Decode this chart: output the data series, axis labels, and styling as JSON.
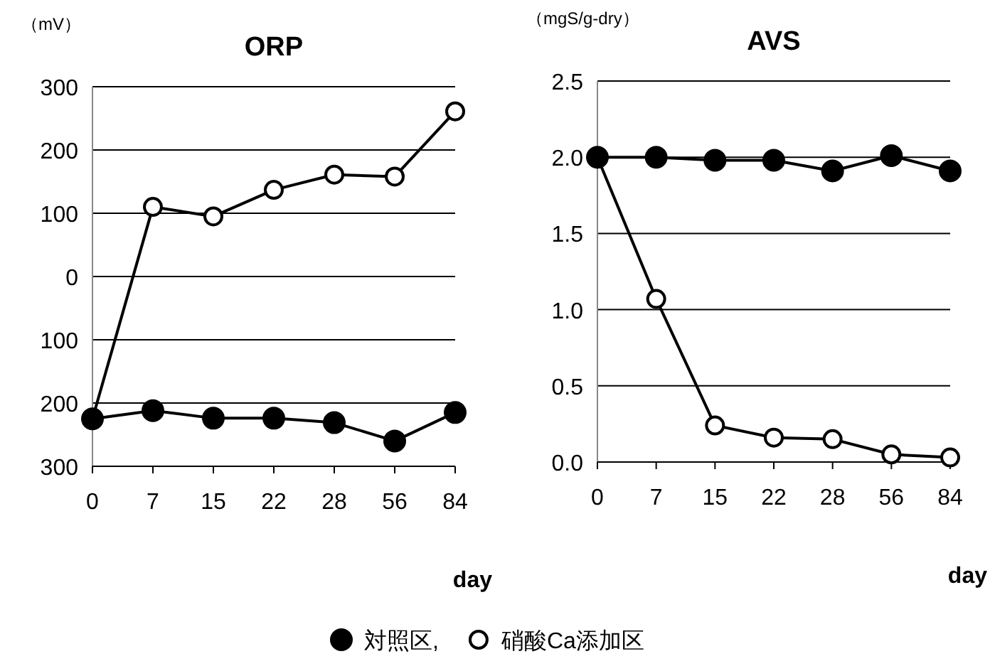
{
  "chart_data": [
    {
      "type": "line",
      "title": "ORP",
      "ylabel": "（mV）",
      "xlabel": "day",
      "categories": [
        "0",
        "7",
        "15",
        "22",
        "28",
        "56",
        "84"
      ],
      "ylim": [
        -300,
        300
      ],
      "yticks": [
        300,
        200,
        100,
        0,
        {
          "value": -100,
          "label": "100"
        },
        {
          "value": -200,
          "label": "200"
        },
        {
          "value": -300,
          "label": "300"
        }
      ],
      "grid": "y",
      "legend": "bottom",
      "marker": "circle",
      "line_style": "solid",
      "series": [
        {
          "name": "対照区,",
          "color": "#000000",
          "values": [
            -225,
            -212,
            -224,
            -224,
            -231,
            -260,
            -215
          ]
        },
        {
          "name": "硝酸Ca添加区",
          "color": "#000000",
          "colors": [
            "#ffffff",
            "#ffffff",
            "#ffffff",
            "#ffffff",
            "#ffffff",
            "#ffffff",
            "#ffffff"
          ],
          "values": [
            -225,
            110,
            95,
            137,
            161,
            158,
            261
          ]
        }
      ]
    },
    {
      "type": "line",
      "title": "AVS",
      "ylabel": "（mgS/g-dry）",
      "xlabel": "day",
      "categories": [
        "0",
        "7",
        "15",
        "22",
        "28",
        "56",
        "84"
      ],
      "ylim": [
        0,
        2.5
      ],
      "yticks": [
        {
          "value": 0,
          "label": "0.0"
        },
        {
          "value": 0.5,
          "label": "0.5"
        },
        {
          "value": 1,
          "label": "1.0"
        },
        {
          "value": 1.5,
          "label": "1.5"
        },
        {
          "value": 2,
          "label": "2.0"
        },
        {
          "value": 2.5,
          "label": "2.5"
        }
      ],
      "grid": "y",
      "marker": "circle",
      "line_style": "solid",
      "series": [
        {
          "color": "#000000",
          "values": [
            2.0,
            2.0,
            1.98,
            1.98,
            1.91,
            2.01,
            1.91
          ]
        },
        {
          "color": "#000000",
          "colors": [
            "#ffffff",
            "#ffffff",
            "#ffffff",
            "#ffffff",
            "#ffffff",
            "#ffffff",
            "#ffffff"
          ],
          "values": [
            2.0,
            1.07,
            0.24,
            0.16,
            0.15,
            0.05,
            0.03
          ]
        }
      ]
    }
  ]
}
